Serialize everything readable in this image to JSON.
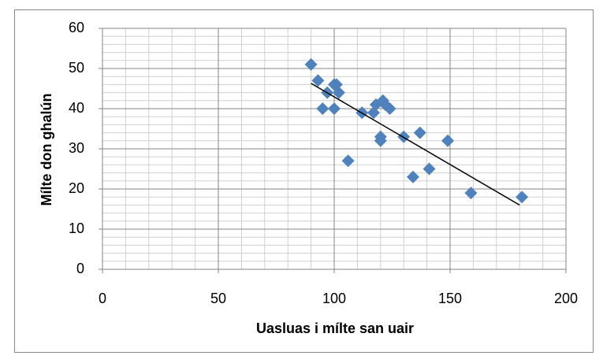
{
  "chart_data": {
    "type": "scatter",
    "xlabel": "Uasluas i mílte san uair",
    "ylabel": "Mílte don ghalún",
    "x": [
      90,
      93,
      95,
      97,
      100,
      101,
      100,
      102,
      106,
      112,
      117,
      118,
      121,
      122,
      124,
      120,
      120,
      130,
      134,
      137,
      141,
      149,
      159,
      181
    ],
    "values": [
      51,
      47,
      40,
      44,
      46,
      46,
      40,
      44,
      27,
      39,
      39,
      41,
      42,
      41,
      40,
      32,
      33,
      33,
      23,
      34,
      25,
      32,
      19,
      18
    ],
    "color": "#4f81bd",
    "trendline": {
      "x": [
        90,
        180
      ],
      "values": [
        46.3,
        16
      ],
      "color": "#000000"
    },
    "xlim": [
      0,
      200
    ],
    "xticks": [
      0,
      50,
      100,
      150,
      200
    ],
    "ylim": [
      0,
      60
    ],
    "yticks": [
      0,
      10,
      20,
      30,
      40,
      50,
      60
    ],
    "grid": true,
    "minor_grid": {
      "x": 10,
      "y": 2
    }
  }
}
